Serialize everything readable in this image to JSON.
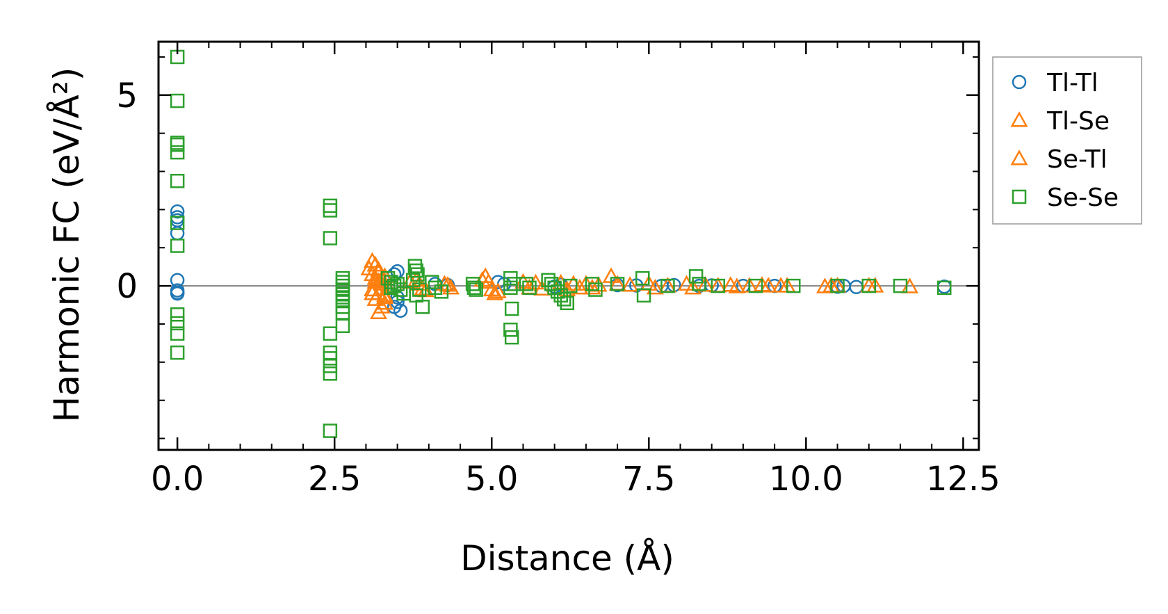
{
  "chart_data": {
    "type": "scatter",
    "xlabel": "Distance (Å)",
    "ylabel": "Harmonic FC (eV/Å²)",
    "xlim": [
      -0.3,
      12.75
    ],
    "ylim": [
      -4.3,
      6.4
    ],
    "xticks": [
      0.0,
      2.5,
      5.0,
      7.5,
      10.0,
      12.5
    ],
    "xtick_labels": [
      "0.0",
      "2.5",
      "5.0",
      "7.5",
      "10.0",
      "12.5"
    ],
    "xminor_step": 0.5,
    "yticks": [
      0,
      5
    ],
    "ytick_labels": [
      "0",
      "5"
    ],
    "yminor_step": 1,
    "zero_line": true,
    "legend_position": "outside right, top",
    "series": [
      {
        "name": "Tl-Tl",
        "marker": "circle",
        "color": "#1f77b4",
        "x": [
          0,
          0,
          0,
          0,
          0,
          0,
          0,
          0,
          3.45,
          3.5,
          3.5,
          3.55,
          3.45,
          3.5,
          4.1,
          4.3,
          5.1,
          5.2,
          6.0,
          6.1,
          7.0,
          7.3,
          7.7,
          7.9,
          8.3,
          8.5,
          9.0,
          9.5,
          10.5,
          10.6,
          10.8,
          12.2
        ],
        "y": [
          1.95,
          1.8,
          1.72,
          1.38,
          0.15,
          -0.12,
          -0.18,
          -0.2,
          0.3,
          0.38,
          -0.3,
          -0.65,
          -0.55,
          -0.42,
          0.05,
          0.02,
          0.1,
          0.05,
          -0.02,
          0.03,
          0.02,
          0.01,
          0.0,
          0.02,
          0.0,
          0.01,
          0.0,
          0.0,
          -0.02,
          0.0,
          -0.03,
          -0.02
        ]
      },
      {
        "name": "Tl-Se",
        "marker": "triangle",
        "color": "#ff7f0e",
        "x": [
          3.1,
          3.15,
          3.2,
          3.1,
          3.15,
          3.2,
          3.25,
          3.1,
          3.2,
          3.3,
          3.15,
          3.3,
          3.25,
          3.2,
          3.3,
          3.15,
          3.35,
          3.8,
          3.85,
          3.9,
          4.3,
          4.35,
          4.9,
          4.95,
          5.0,
          5.05,
          5.5,
          5.6,
          6.1,
          6.2,
          6.5,
          6.6,
          6.9,
          7.0,
          7.5,
          7.6,
          8.1,
          8.2,
          8.8,
          8.9,
          9.3,
          9.4,
          9.6,
          10.3,
          10.5,
          11.1,
          11.65
        ],
        "y": [
          0.65,
          0.55,
          0.42,
          0.3,
          0.2,
          0.12,
          0.05,
          -0.1,
          -0.2,
          -0.3,
          -0.35,
          -0.45,
          -0.55,
          -0.7,
          0.25,
          0.1,
          -0.05,
          0.15,
          0.05,
          -0.08,
          0.02,
          -0.05,
          0.25,
          0.1,
          -0.1,
          -0.2,
          0.1,
          -0.05,
          0.08,
          -0.1,
          0.05,
          -0.05,
          0.25,
          0.05,
          0.05,
          -0.05,
          0.05,
          -0.05,
          0.02,
          -0.02,
          0.02,
          0.0,
          0.0,
          -0.02,
          0.0,
          0.0,
          -0.02
        ]
      },
      {
        "name": "Se-Tl",
        "marker": "triangle",
        "color": "#ff7f0e",
        "x": [
          3.05,
          3.2,
          3.3,
          3.1,
          3.25,
          3.7,
          3.95,
          4.25,
          4.85,
          5.1,
          5.7,
          5.8,
          6.3,
          6.4,
          6.7,
          7.2,
          7.8,
          8.4,
          8.6,
          9.1,
          9.7,
          10.4,
          11.0
        ],
        "y": [
          0.45,
          0.35,
          -0.25,
          -0.2,
          0.18,
          0.1,
          -0.12,
          0.05,
          0.15,
          -0.15,
          0.08,
          -0.08,
          0.05,
          -0.05,
          0.02,
          0.02,
          0.0,
          0.02,
          0.0,
          0.0,
          0.0,
          0.0,
          0.0
        ]
      },
      {
        "name": "Se-Se",
        "marker": "square",
        "color": "#2ca02c",
        "x": [
          0,
          0,
          0,
          0,
          0,
          0,
          0,
          0,
          0,
          0,
          0,
          0,
          2.43,
          2.43,
          2.43,
          2.43,
          2.43,
          2.43,
          2.43,
          2.43,
          2.43,
          2.63,
          2.63,
          2.63,
          2.63,
          2.63,
          2.63,
          2.63,
          2.63,
          2.63,
          2.63,
          3.35,
          3.4,
          3.45,
          3.55,
          3.6,
          3.5,
          3.4,
          3.78,
          3.8,
          3.82,
          3.75,
          3.85,
          3.8,
          3.9,
          4.05,
          4.1,
          4.2,
          4.7,
          4.72,
          4.75,
          5.3,
          5.3,
          5.32,
          5.3,
          5.32,
          5.35,
          5.55,
          5.6,
          5.9,
          5.95,
          6.0,
          6.05,
          6.1,
          6.15,
          6.2,
          6.25,
          6.6,
          6.65,
          7.0,
          7.4,
          7.42,
          7.8,
          8.25,
          8.3,
          8.6,
          9.2,
          9.8,
          10.5,
          11.0,
          11.5,
          12.2
        ],
        "y": [
          6.0,
          4.85,
          3.75,
          3.7,
          3.5,
          2.75,
          1.65,
          1.05,
          -0.75,
          -0.98,
          -1.25,
          -1.75,
          2.1,
          1.98,
          1.25,
          -1.25,
          -1.75,
          -1.9,
          -2.1,
          -2.3,
          -3.8,
          0.2,
          0.1,
          0.0,
          -0.1,
          -0.2,
          -0.3,
          -0.4,
          -0.55,
          -0.7,
          -1.05,
          0.2,
          0.1,
          0.0,
          -0.1,
          -0.2,
          0.05,
          -0.05,
          0.52,
          0.4,
          0.3,
          0.15,
          -0.1,
          -0.25,
          -0.55,
          0.1,
          -0.05,
          -0.15,
          0.05,
          -0.05,
          -0.1,
          0.2,
          -0.05,
          -0.6,
          -1.15,
          -1.35,
          0.05,
          0.05,
          -0.05,
          0.15,
          0.05,
          -0.05,
          -0.15,
          -0.25,
          -0.35,
          -0.45,
          0.0,
          0.05,
          -0.1,
          0.05,
          0.2,
          -0.25,
          0.0,
          0.25,
          0.05,
          0.0,
          0.0,
          0.0,
          0.0,
          0.0,
          0.0,
          -0.05
        ]
      }
    ]
  }
}
